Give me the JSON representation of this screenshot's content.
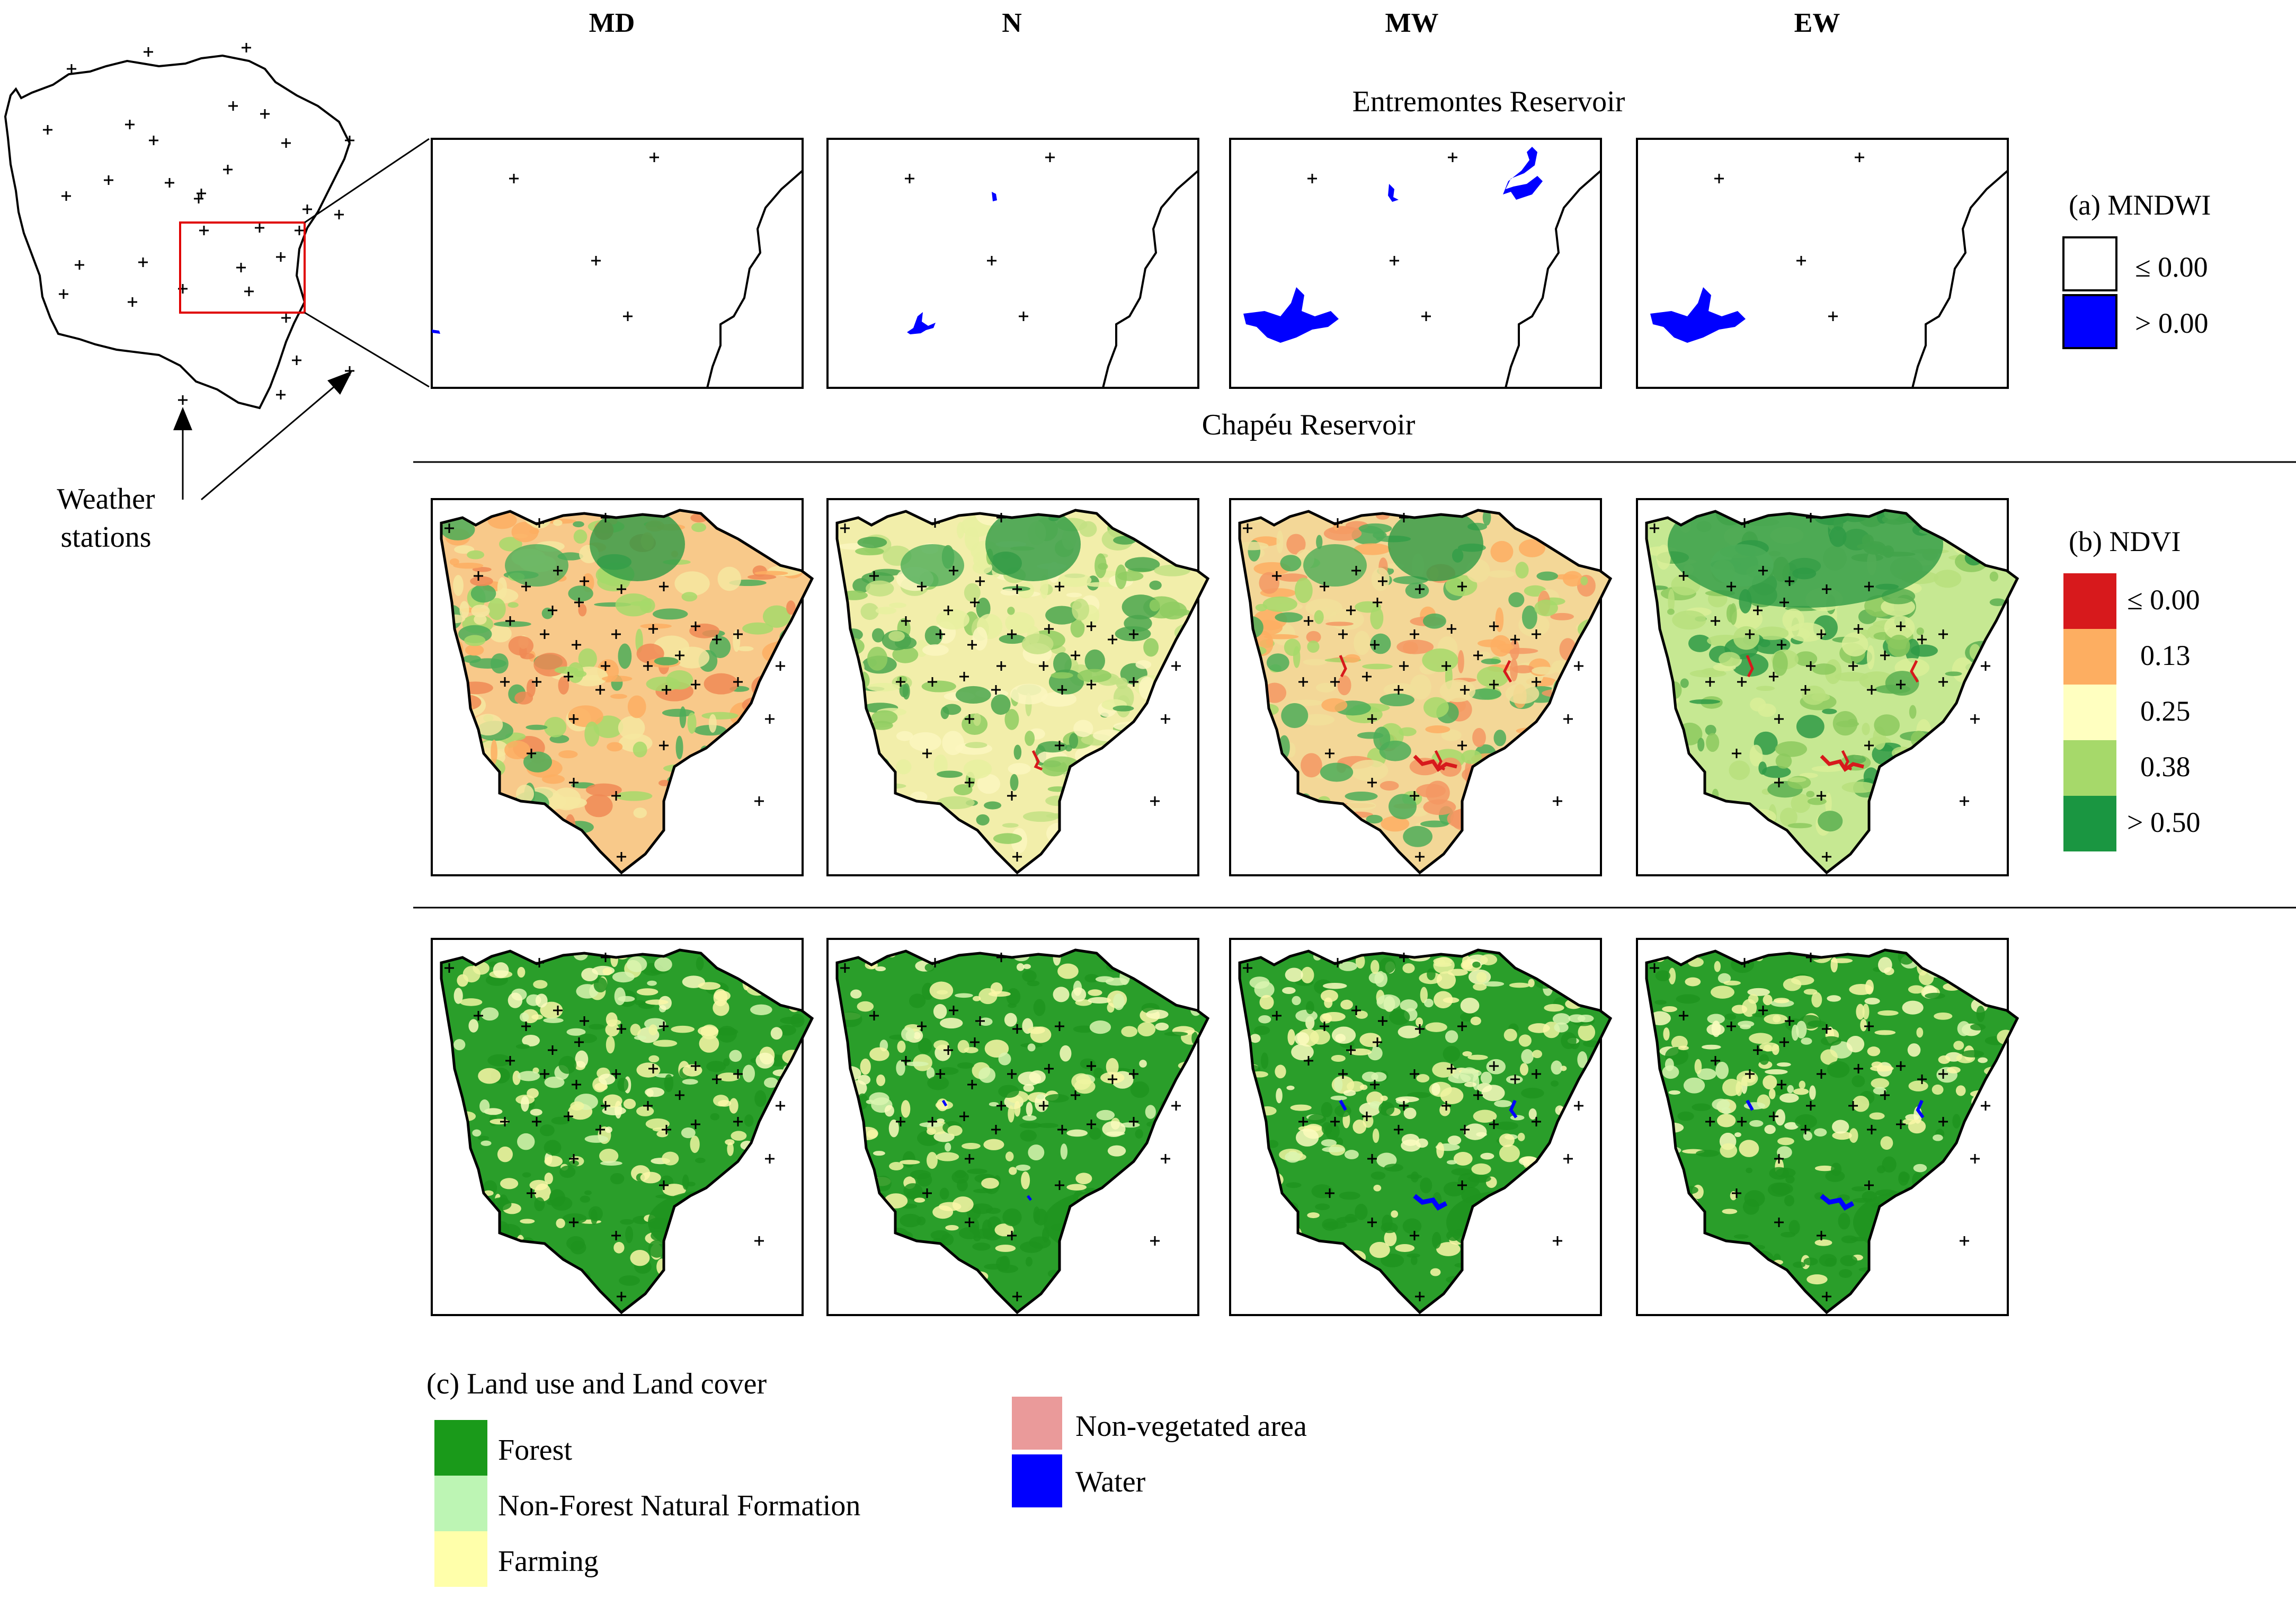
{
  "column_headers": [
    "MD",
    "N",
    "MW",
    "EW"
  ],
  "reservoirs": {
    "top": "Entremontes Reservoir",
    "bottom": "Chapéu Reservoir"
  },
  "overview": {
    "label_line1": "Weather",
    "label_line2": "stations"
  },
  "legends": {
    "mndwi": {
      "title": "(a) MNDWI",
      "items": [
        {
          "label": "≤ 0.00",
          "color": "#ffffff"
        },
        {
          "label": "> 0.00",
          "color": "#0000ff"
        }
      ]
    },
    "ndvi": {
      "title": "(b) NDVI",
      "items": [
        {
          "label": "≤ 0.00",
          "color": "#d7191c"
        },
        {
          "label": "0.13",
          "color": "#fdae61"
        },
        {
          "label": "0.25",
          "color": "#ffffc0"
        },
        {
          "label": "0.38",
          "color": "#a6d96a"
        },
        {
          "label": "> 0.50",
          "color": "#1a9641"
        }
      ]
    },
    "lulc": {
      "title": "(c) Land use and Land cover",
      "items": [
        {
          "label": "Forest",
          "color": "#1a9a1a"
        },
        {
          "label": "Non-Forest Natural Formation",
          "color": "#bdf5b4"
        },
        {
          "label": "Farming",
          "color": "#ffffaa"
        },
        {
          "label": "Non-vegetated area",
          "color": "#ea9a9a"
        },
        {
          "label": "Water",
          "color": "#0000ff"
        }
      ]
    }
  }
}
